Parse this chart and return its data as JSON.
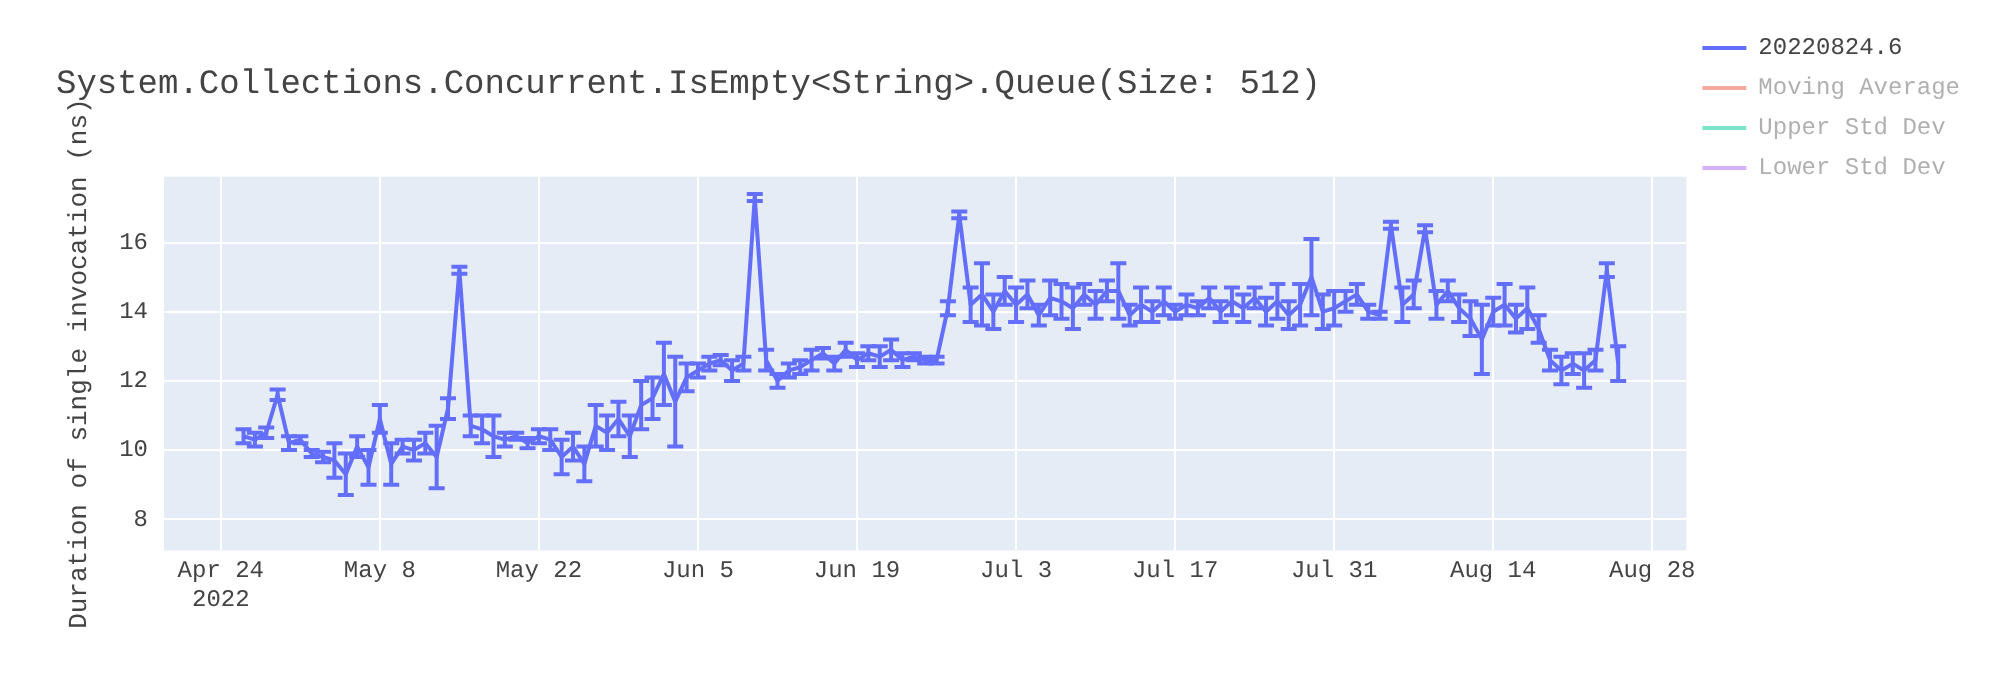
{
  "chart_data": {
    "type": "line",
    "title": "System.Collections.Concurrent.IsEmpty<String>.Queue(Size: 512)",
    "ylabel": "Duration of single invocation (ns)",
    "x": [
      "2022-04-26",
      "2022-04-27",
      "2022-04-28",
      "2022-04-29",
      "2022-04-30",
      "2022-05-01",
      "2022-05-02",
      "2022-05-03",
      "2022-05-04",
      "2022-05-05",
      "2022-05-06",
      "2022-05-07",
      "2022-05-08",
      "2022-05-09",
      "2022-05-10",
      "2022-05-11",
      "2022-05-12",
      "2022-05-13",
      "2022-05-14",
      "2022-05-15",
      "2022-05-16",
      "2022-05-17",
      "2022-05-18",
      "2022-05-19",
      "2022-05-20",
      "2022-05-21",
      "2022-05-22",
      "2022-05-23",
      "2022-05-24",
      "2022-05-25",
      "2022-05-26",
      "2022-05-27",
      "2022-05-28",
      "2022-05-29",
      "2022-05-30",
      "2022-05-31",
      "2022-06-01",
      "2022-06-02",
      "2022-06-03",
      "2022-06-04",
      "2022-06-05",
      "2022-06-06",
      "2022-06-07",
      "2022-06-08",
      "2022-06-09",
      "2022-06-10",
      "2022-06-11",
      "2022-06-12",
      "2022-06-13",
      "2022-06-14",
      "2022-06-15",
      "2022-06-16",
      "2022-06-17",
      "2022-06-18",
      "2022-06-19",
      "2022-06-20",
      "2022-06-21",
      "2022-06-22",
      "2022-06-23",
      "2022-06-24",
      "2022-06-25",
      "2022-06-26",
      "2022-06-27",
      "2022-06-28",
      "2022-06-29",
      "2022-06-30",
      "2022-07-01",
      "2022-07-02",
      "2022-07-03",
      "2022-07-04",
      "2022-07-05",
      "2022-07-06",
      "2022-07-07",
      "2022-07-08",
      "2022-07-09",
      "2022-07-10",
      "2022-07-11",
      "2022-07-12",
      "2022-07-13",
      "2022-07-14",
      "2022-07-15",
      "2022-07-16",
      "2022-07-17",
      "2022-07-18",
      "2022-07-19",
      "2022-07-20",
      "2022-07-21",
      "2022-07-22",
      "2022-07-23",
      "2022-07-24",
      "2022-07-25",
      "2022-07-26",
      "2022-07-27",
      "2022-07-28",
      "2022-07-29",
      "2022-07-30",
      "2022-07-31",
      "2022-08-01",
      "2022-08-02",
      "2022-08-03",
      "2022-08-04",
      "2022-08-05",
      "2022-08-06",
      "2022-08-07",
      "2022-08-08",
      "2022-08-09",
      "2022-08-10",
      "2022-08-11",
      "2022-08-12",
      "2022-08-13",
      "2022-08-14",
      "2022-08-15",
      "2022-08-16",
      "2022-08-17",
      "2022-08-18",
      "2022-08-19",
      "2022-08-20",
      "2022-08-21",
      "2022-08-22",
      "2022-08-23",
      "2022-08-24",
      "2022-08-25"
    ],
    "series": [
      {
        "name": "20220824.6",
        "color": "#636efa",
        "values": [
          10.4,
          10.3,
          10.5,
          11.6,
          10.2,
          10.3,
          9.9,
          9.8,
          9.7,
          9.3,
          10.1,
          9.5,
          10.9,
          9.6,
          10.1,
          10.0,
          10.2,
          9.8,
          11.2,
          15.2,
          10.7,
          10.6,
          10.4,
          10.3,
          10.4,
          10.2,
          10.4,
          10.3,
          9.8,
          10.1,
          9.6,
          10.7,
          10.5,
          10.9,
          10.4,
          11.3,
          11.5,
          12.2,
          11.4,
          12.1,
          12.3,
          12.5,
          12.6,
          12.3,
          12.5,
          17.3,
          12.6,
          12.0,
          12.3,
          12.4,
          12.6,
          12.8,
          12.5,
          12.9,
          12.6,
          12.8,
          12.7,
          12.9,
          12.6,
          12.7,
          12.6,
          12.6,
          14.1,
          16.8,
          14.2,
          14.5,
          14.0,
          14.6,
          14.2,
          14.5,
          13.9,
          14.4,
          14.3,
          14.1,
          14.5,
          14.2,
          14.6,
          14.6,
          13.9,
          14.2,
          14.0,
          14.3,
          14.0,
          14.2,
          14.1,
          14.4,
          14.0,
          14.3,
          14.1,
          14.4,
          14.0,
          14.3,
          13.9,
          14.2,
          15.0,
          14.0,
          14.1,
          14.3,
          14.5,
          14.0,
          13.9,
          16.5,
          14.2,
          14.5,
          16.4,
          14.2,
          14.6,
          14.1,
          13.8,
          13.2,
          14.0,
          14.2,
          13.8,
          14.1,
          13.5,
          12.6,
          12.3,
          12.5,
          12.3,
          12.6,
          15.2,
          12.5
        ],
        "errors": [
          0.2,
          0.2,
          0.15,
          0.15,
          0.2,
          0.1,
          0.1,
          0.15,
          0.5,
          0.6,
          0.3,
          0.5,
          0.4,
          0.6,
          0.2,
          0.3,
          0.3,
          0.9,
          0.3,
          0.1,
          0.3,
          0.4,
          0.6,
          0.2,
          0.1,
          0.15,
          0.2,
          0.3,
          0.5,
          0.4,
          0.5,
          0.6,
          0.5,
          0.5,
          0.6,
          0.7,
          0.6,
          0.9,
          1.3,
          0.4,
          0.2,
          0.2,
          0.15,
          0.3,
          0.2,
          0.1,
          0.3,
          0.2,
          0.2,
          0.2,
          0.3,
          0.15,
          0.2,
          0.2,
          0.2,
          0.2,
          0.3,
          0.3,
          0.2,
          0.1,
          0.1,
          0.1,
          0.2,
          0.1,
          0.5,
          0.9,
          0.5,
          0.4,
          0.5,
          0.4,
          0.3,
          0.5,
          0.5,
          0.6,
          0.3,
          0.4,
          0.3,
          0.8,
          0.3,
          0.5,
          0.3,
          0.4,
          0.2,
          0.3,
          0.2,
          0.3,
          0.3,
          0.4,
          0.4,
          0.3,
          0.4,
          0.5,
          0.4,
          0.6,
          1.1,
          0.5,
          0.5,
          0.3,
          0.3,
          0.2,
          0.1,
          0.1,
          0.5,
          0.4,
          0.1,
          0.4,
          0.3,
          0.4,
          0.5,
          1.0,
          0.4,
          0.6,
          0.4,
          0.6,
          0.4,
          0.3,
          0.4,
          0.3,
          0.5,
          0.3,
          0.2,
          0.5
        ]
      },
      {
        "name": "Moving Average",
        "color": "#f7aa9d",
        "values": [
          null,
          null,
          null,
          null,
          null,
          null,
          null,
          null,
          null,
          null,
          null,
          null,
          null,
          null,
          null,
          null,
          null,
          null,
          null,
          null,
          null,
          null,
          null,
          null,
          null,
          null,
          null,
          null,
          null,
          null,
          null,
          null,
          null,
          null,
          null,
          null,
          null,
          null,
          null,
          null,
          null,
          null,
          null,
          null,
          null,
          null,
          null,
          null,
          null,
          null,
          null,
          null,
          null,
          null,
          null,
          null,
          null,
          null,
          null,
          null,
          null,
          null,
          null,
          null,
          null,
          null,
          null,
          null,
          null,
          null,
          null,
          null,
          null,
          null,
          null,
          null,
          null,
          null,
          null,
          null,
          null,
          null,
          null,
          null,
          null,
          null,
          null,
          null,
          null,
          null,
          null,
          null,
          null,
          null,
          null,
          null,
          null,
          null,
          null,
          null,
          null,
          null,
          null,
          null,
          null,
          null,
          null,
          null,
          null,
          null,
          null,
          null,
          null,
          null,
          null,
          null,
          null,
          null,
          null,
          null,
          null,
          null
        ]
      },
      {
        "name": "Upper Std Dev",
        "color": "#7fe5ca",
        "values": [
          null,
          null,
          null,
          null,
          null,
          null,
          null,
          null,
          null,
          null,
          null,
          null,
          null,
          null,
          null,
          null,
          null,
          null,
          null,
          null,
          null,
          null,
          null,
          null,
          null,
          null,
          null,
          null,
          null,
          null,
          null,
          null,
          null,
          null,
          null,
          null,
          null,
          null,
          null,
          null,
          null,
          null,
          null,
          null,
          null,
          null,
          null,
          null,
          null,
          null,
          null,
          null,
          null,
          null,
          null,
          null,
          null,
          null,
          null,
          null,
          null,
          null,
          null,
          null,
          null,
          null,
          null,
          null,
          null,
          null,
          null,
          null,
          null,
          null,
          null,
          null,
          null,
          null,
          null,
          null,
          null,
          null,
          null,
          null,
          null,
          null,
          null,
          null,
          null,
          null,
          null,
          null,
          null,
          null,
          null,
          null,
          null,
          null,
          null,
          null,
          null,
          null,
          null,
          null,
          null,
          null,
          null,
          null,
          null,
          null,
          null,
          null,
          null,
          null,
          null,
          null,
          null,
          null,
          null,
          null,
          null,
          null
        ]
      },
      {
        "name": "Lower Std Dev",
        "color": "#d5b1fc",
        "values": [
          null,
          null,
          null,
          null,
          null,
          null,
          null,
          null,
          null,
          null,
          null,
          null,
          null,
          null,
          null,
          null,
          null,
          null,
          null,
          null,
          null,
          null,
          null,
          null,
          null,
          null,
          null,
          null,
          null,
          null,
          null,
          null,
          null,
          null,
          null,
          null,
          null,
          null,
          null,
          null,
          null,
          null,
          null,
          null,
          null,
          null,
          null,
          null,
          null,
          null,
          null,
          null,
          null,
          null,
          null,
          null,
          null,
          null,
          null,
          null,
          null,
          null,
          null,
          null,
          null,
          null,
          null,
          null,
          null,
          null,
          null,
          null,
          null,
          null,
          null,
          null,
          null,
          null,
          null,
          null,
          null,
          null,
          null,
          null,
          null,
          null,
          null,
          null,
          null,
          null,
          null,
          null,
          null,
          null,
          null,
          null,
          null,
          null,
          null,
          null,
          null,
          null,
          null,
          null,
          null,
          null,
          null,
          null,
          null,
          null,
          null,
          null,
          null,
          null,
          null,
          null,
          null,
          null,
          null,
          null,
          null,
          null
        ]
      }
    ],
    "xlim": [
      "2022-04-19",
      "2022-08-31"
    ],
    "xticks": [
      {
        "value": "2022-04-24",
        "label": "Apr 24\n2022"
      },
      {
        "value": "2022-05-08",
        "label": "May 8"
      },
      {
        "value": "2022-05-22",
        "label": "May 22"
      },
      {
        "value": "2022-06-05",
        "label": "Jun 5"
      },
      {
        "value": "2022-06-19",
        "label": "Jun 19"
      },
      {
        "value": "2022-07-03",
        "label": "Jul 3"
      },
      {
        "value": "2022-07-17",
        "label": "Jul 17"
      },
      {
        "value": "2022-07-31",
        "label": "Jul 31"
      },
      {
        "value": "2022-08-14",
        "label": "Aug 14"
      },
      {
        "value": "2022-08-28",
        "label": "Aug 28"
      }
    ],
    "ylim": [
      7.1,
      17.9
    ],
    "yticks": [
      8,
      10,
      12,
      14,
      16
    ],
    "grid": true,
    "legend": "top right",
    "marker": "none",
    "line_style": "solid"
  }
}
